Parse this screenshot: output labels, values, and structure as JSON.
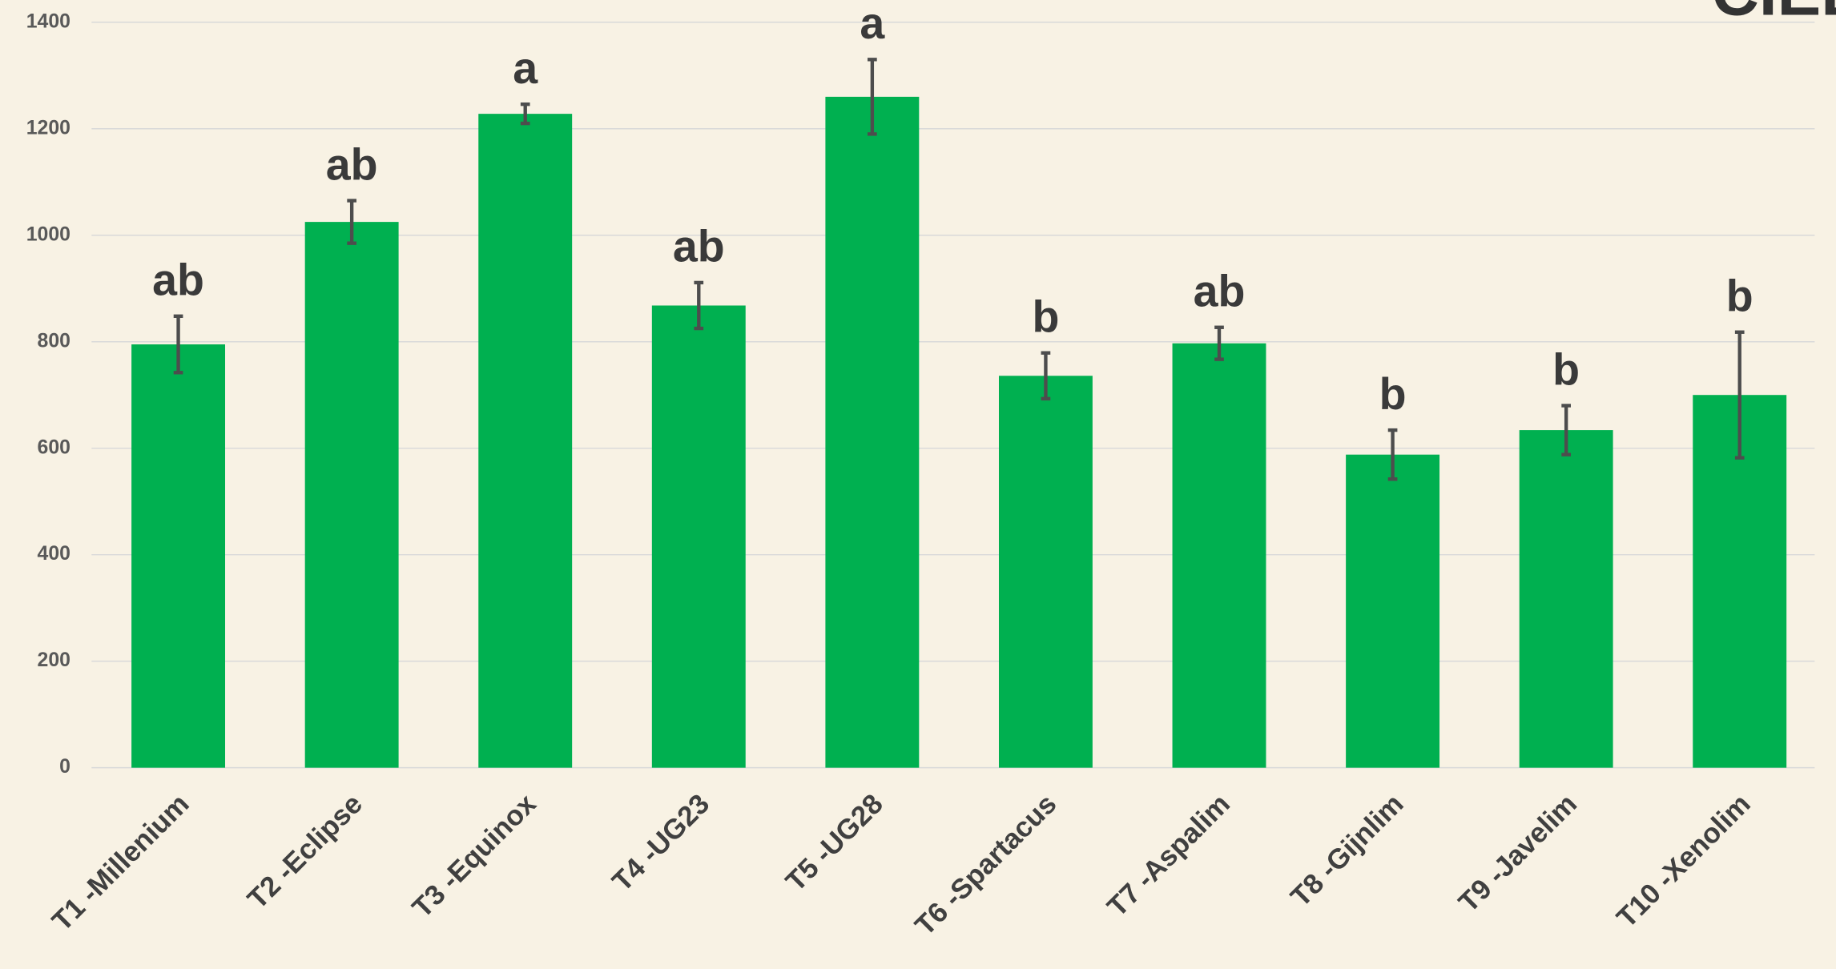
{
  "chart_data": {
    "type": "bar",
    "logo": "CIEL",
    "categories": [
      "T1 -Millenium",
      "T2 -Eclipse",
      "T3 -Equinox",
      "T4 -UG23",
      "T5 -UG28",
      "T6 -Spartacus",
      "T7 -Aspalim",
      "T8 -Gijnlim",
      "T9 -Javelim",
      "T10 -Xenolim"
    ],
    "values": [
      795,
      1025,
      1228,
      868,
      1260,
      736,
      797,
      588,
      634,
      700
    ],
    "errors": [
      53,
      40,
      18,
      43,
      70,
      43,
      30,
      46,
      46,
      118
    ],
    "letters": [
      "ab",
      "ab",
      "a",
      "ab",
      "a",
      "b",
      "ab",
      "b",
      "b",
      "b"
    ],
    "color": "#00b050",
    "error_color": "#4d4d4d",
    "ylim": [
      0,
      1400
    ],
    "yticks": [
      0,
      200,
      400,
      600,
      800,
      1000,
      1200,
      1400
    ],
    "grid": true
  }
}
